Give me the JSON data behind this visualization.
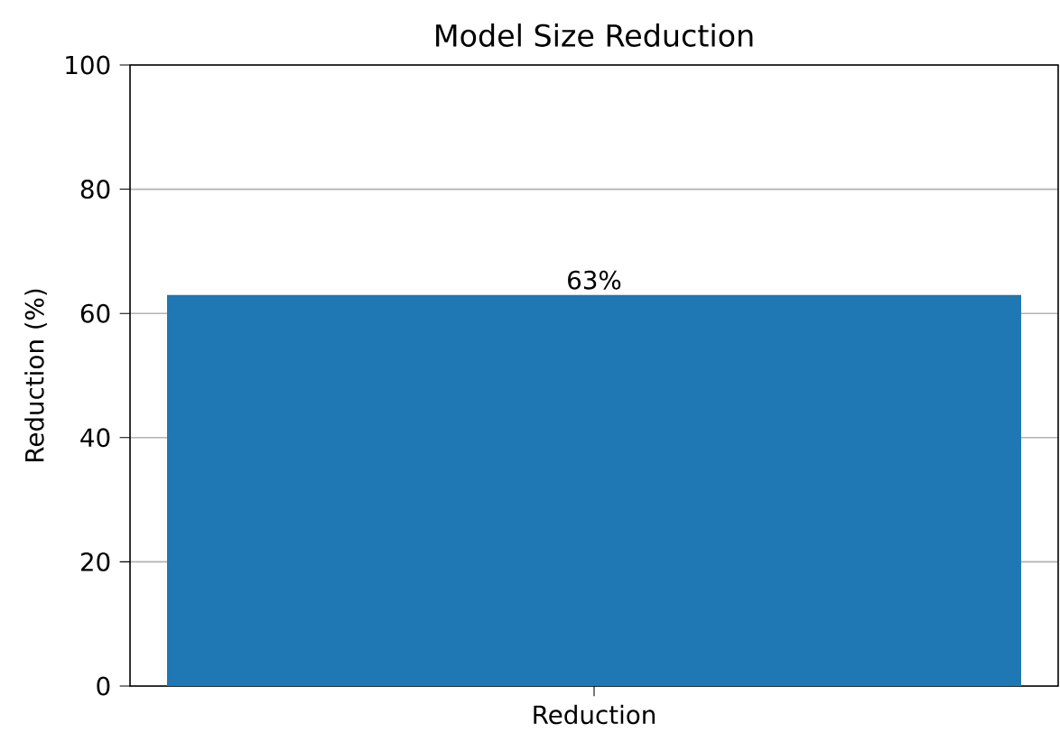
{
  "chart_data": {
    "type": "bar",
    "title": "Model Size Reduction",
    "ylabel": "Reduction (%)",
    "categories": [
      "Reduction"
    ],
    "values": [
      63
    ],
    "color": "#1f77b4",
    "value_labels": [
      "63%"
    ],
    "ylim": [
      0,
      100
    ],
    "yticks": [
      0,
      20,
      40,
      60,
      80,
      100
    ],
    "grid": "y"
  }
}
